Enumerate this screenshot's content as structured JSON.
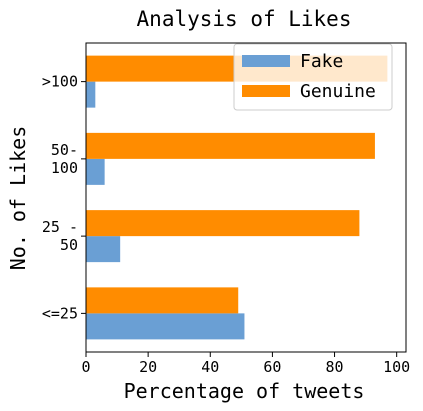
{
  "chart_data": {
    "type": "bar",
    "orientation": "horizontal",
    "title": "Analysis of Likes",
    "xlabel": "Percentage of tweets",
    "ylabel": "No. of Likes",
    "categories": [
      {
        "label": [
          "<=25"
        ]
      },
      {
        "label": [
          "25 -",
          "50"
        ]
      },
      {
        "label": [
          "50-",
          "100"
        ]
      },
      {
        "label": [
          ">100"
        ]
      }
    ],
    "series": [
      {
        "name": "Fake",
        "color": "#6a9fd4",
        "values": [
          51,
          11,
          6,
          3
        ]
      },
      {
        "name": "Genuine",
        "color": "#ff8c00",
        "values": [
          49,
          88,
          93,
          97
        ]
      }
    ],
    "xlim": [
      0,
      103
    ],
    "xticks": [
      0,
      20,
      40,
      60,
      80,
      100
    ],
    "legend_position": "top-right",
    "grid": false
  }
}
